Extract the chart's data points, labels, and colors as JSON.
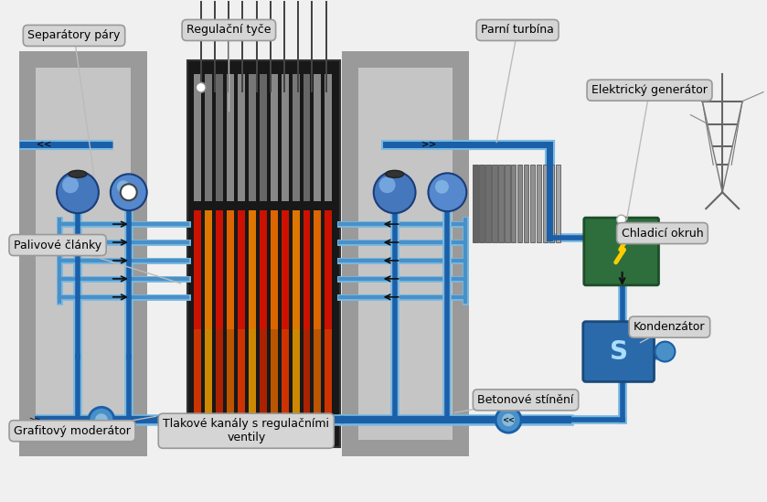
{
  "labels": {
    "separatory": "Separátory páry",
    "regulacni": "Regulační tyče",
    "parni": "Parní turbína",
    "elektricky": "Elektrický generátor",
    "palivove": "Palivové články",
    "chladici": "Chladicí okruh",
    "kondenzator": "Kondenzátor",
    "betonove": "Betonové stínění",
    "tlakove": "Tlakové kanály s regulačními\nventily",
    "grafitovy": "Grafitový moderátor"
  },
  "bg_color": "#f0f0f0",
  "pipe_dark": "#1a5fa8",
  "pipe_light": "#7ab9e0",
  "pipe_mid": "#4a90c8",
  "gray_dark": "#8a8a8a",
  "gray_mid": "#b0b0b0",
  "gray_light": "#d0d0d0",
  "gray_inner": "#c8c8c8",
  "reactor_bg": "#181818",
  "fuel_red": "#cc1100",
  "fuel_orange": "#dd6600",
  "fuel_gray": "#555555",
  "fuel_yellow": "#cc9900",
  "gen_green_dark": "#1e4d2a",
  "gen_green": "#2d6e3c",
  "cond_blue_dark": "#1a4a7a",
  "cond_blue": "#2060a0",
  "label_fill": "#d5d5d5",
  "label_edge": "#999999",
  "arrow_color": "#111111"
}
